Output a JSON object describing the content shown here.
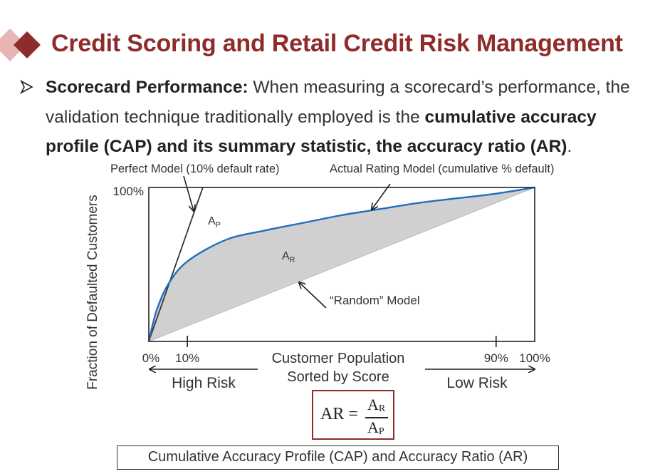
{
  "header": {
    "title": "Credit Scoring and Retail Credit Risk Management"
  },
  "body": {
    "bullet_label": "Scorecard Performance:",
    "text_1": " When measuring a scorecard’s performance, the validation technique traditionally employed is the ",
    "emphasis": "cumulative accuracy profile (CAP) and its summary statistic, the accuracy ratio (AR)",
    "text_2": "."
  },
  "chart_data": {
    "type": "line",
    "title": "",
    "xlabel": "Customer Population Sorted by Score",
    "ylabel": "Fraction of Defaulted Customers",
    "xlim": [
      0,
      100
    ],
    "ylim": [
      0,
      100
    ],
    "x_ticks": [
      "0%",
      "10%",
      "90%",
      "100%"
    ],
    "y_ticks": [
      "100%"
    ],
    "grid": false,
    "series": [
      {
        "name": "Perfect Model (10% default rate)",
        "x": [
          0,
          10,
          14
        ],
        "y": [
          0,
          100,
          100
        ]
      },
      {
        "name": "Actual Rating Model (cumulative % default)",
        "x": [
          0,
          2,
          5,
          10,
          20,
          30,
          40,
          50,
          60,
          70,
          80,
          90,
          100
        ],
        "y": [
          0,
          20,
          37,
          52,
          66,
          72,
          77,
          82,
          86,
          90,
          93,
          96,
          100
        ]
      },
      {
        "name": "“Random” Model",
        "x": [
          0,
          100
        ],
        "y": [
          0,
          100
        ]
      }
    ],
    "annotations": {
      "perfect_model": "Perfect Model (10% default rate)",
      "actual_model": "Actual Rating Model (cumulative % default)",
      "random_model": "“Random” Model",
      "area_p": "A",
      "area_p_sub": "P",
      "area_r": "A",
      "area_r_sub": "R",
      "high_risk": "High Risk",
      "low_risk": "Low Risk",
      "xlabel_line1": "Customer Population",
      "xlabel_line2": "Sorted by Score"
    },
    "colors": {
      "actual_curve": "#1f6fbf",
      "shaded_area": "#d0d0d0",
      "perfect_line": "#333333",
      "frame": "#222222"
    }
  },
  "formula": {
    "lhs": "AR =",
    "num": "A",
    "num_sub": "R",
    "den": "A",
    "den_sub": "P"
  },
  "caption": "Cumulative Accuracy Profile (CAP) and Accuracy Ratio (AR)",
  "colors": {
    "brand": "#8e2b2b",
    "diamond_light": "#e9b4b4"
  }
}
